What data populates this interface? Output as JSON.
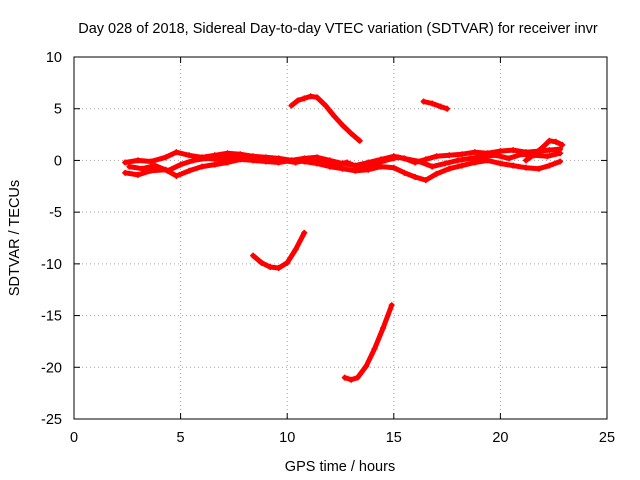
{
  "chart_data": {
    "type": "scatter",
    "title": "Day 028 of 2018, Sidereal Day-to-day VTEC variation (SDTVAR) for receiver invr",
    "xlabel": "GPS time / hours",
    "ylabel": "SDTVAR / TECUs",
    "xlim": [
      0,
      25
    ],
    "ylim": [
      -25,
      10
    ],
    "xticks": [
      0,
      5,
      10,
      15,
      20,
      25
    ],
    "yticks": [
      -25,
      -20,
      -15,
      -10,
      -5,
      0,
      5,
      10
    ],
    "grid": true,
    "legend": "none",
    "color": "#ff0000",
    "series": [
      {
        "name": "track-band-upper",
        "x": [
          2.4,
          3.0,
          3.6,
          4.3,
          4.8,
          5.4,
          6.0,
          6.6,
          7.2,
          7.8,
          8.4,
          9.0,
          9.6,
          10.2,
          10.8,
          11.4,
          12.0,
          12.6,
          13.2,
          13.8,
          14.4,
          15.0,
          15.5,
          16.0,
          16.5,
          17.0,
          17.6,
          18.2,
          18.8,
          19.4,
          20.0,
          20.6,
          21.2,
          21.8,
          22.3,
          22.8
        ],
        "y": [
          -0.2,
          0.0,
          -0.1,
          0.3,
          0.8,
          0.5,
          0.3,
          0.5,
          0.7,
          0.6,
          0.4,
          0.3,
          0.2,
          0.0,
          0.2,
          0.3,
          0.0,
          -0.3,
          -0.5,
          -0.2,
          0.1,
          0.4,
          0.2,
          -0.2,
          0.1,
          0.4,
          0.5,
          0.6,
          0.8,
          0.7,
          0.9,
          1.0,
          0.8,
          0.9,
          1.0,
          1.1
        ]
      },
      {
        "name": "track-band-lower",
        "x": [
          2.4,
          3.0,
          3.6,
          4.3,
          4.8,
          5.4,
          6.0,
          6.6,
          7.2,
          7.8,
          8.4,
          9.0,
          9.6,
          10.2,
          10.8,
          11.4,
          12.0,
          12.6,
          13.2,
          13.8,
          14.4,
          15.0,
          15.5,
          16.0,
          16.5,
          17.0,
          17.6,
          18.2,
          18.8,
          19.4,
          20.0,
          20.6,
          21.2,
          21.8,
          22.3,
          22.8
        ],
        "y": [
          -1.2,
          -1.4,
          -1.0,
          -0.9,
          -1.5,
          -1.0,
          -0.6,
          -0.4,
          -0.2,
          0.1,
          0.0,
          -0.1,
          -0.2,
          0.0,
          -0.1,
          -0.3,
          -0.6,
          -0.8,
          -1.0,
          -0.9,
          -0.6,
          -0.7,
          -1.2,
          -1.6,
          -1.9,
          -1.3,
          -0.8,
          -0.5,
          -0.2,
          0.0,
          -0.3,
          -0.5,
          -0.7,
          -0.8,
          -0.5,
          -0.1
        ]
      },
      {
        "name": "track-band-middle",
        "x": [
          2.6,
          3.2,
          3.8,
          4.4,
          5.0,
          5.6,
          6.2,
          6.8,
          7.4,
          8.0,
          8.6,
          9.2,
          9.8,
          10.4,
          11.0,
          11.6,
          12.2,
          12.8,
          13.4,
          14.0,
          14.6,
          15.2,
          16.2,
          16.8,
          17.4,
          18.0,
          18.6,
          19.2,
          19.8,
          20.4,
          21.0,
          21.6,
          22.2,
          22.8
        ],
        "y": [
          -0.6,
          -0.8,
          -0.5,
          -1.0,
          -0.4,
          0.0,
          0.2,
          0.1,
          0.3,
          0.2,
          0.0,
          0.1,
          0.0,
          -0.2,
          0.1,
          0.0,
          -0.4,
          -0.2,
          -0.7,
          -0.4,
          0.0,
          0.3,
          -0.1,
          -0.6,
          -0.3,
          0.0,
          0.2,
          0.4,
          0.5,
          0.2,
          0.6,
          0.5,
          0.4,
          0.7
        ]
      },
      {
        "name": "track-late-rise",
        "x": [
          21.2,
          21.6,
          22.0,
          22.3,
          22.6,
          22.9
        ],
        "y": [
          0.0,
          0.6,
          1.3,
          1.9,
          1.8,
          1.5
        ]
      },
      {
        "name": "track-hump",
        "x": [
          10.2,
          10.5,
          10.8,
          11.1,
          11.4,
          11.8,
          12.2,
          12.6,
          13.0,
          13.4
        ],
        "y": [
          5.3,
          5.8,
          6.0,
          6.2,
          6.1,
          5.3,
          4.3,
          3.4,
          2.6,
          1.9
        ]
      },
      {
        "name": "track-short-upper",
        "x": [
          16.4,
          16.8,
          17.2,
          17.5
        ],
        "y": [
          5.7,
          5.5,
          5.2,
          5.0
        ]
      },
      {
        "name": "track-dip",
        "x": [
          8.4,
          8.8,
          9.2,
          9.6,
          10.0,
          10.4,
          10.8
        ],
        "y": [
          -9.2,
          -9.9,
          -10.3,
          -10.4,
          -9.9,
          -8.6,
          -7.0
        ]
      },
      {
        "name": "track-steep",
        "x": [
          12.7,
          13.0,
          13.3,
          13.7,
          14.1,
          14.5,
          14.9
        ],
        "y": [
          -21.0,
          -21.2,
          -21.0,
          -19.9,
          -18.2,
          -16.2,
          -14.0
        ]
      }
    ]
  }
}
